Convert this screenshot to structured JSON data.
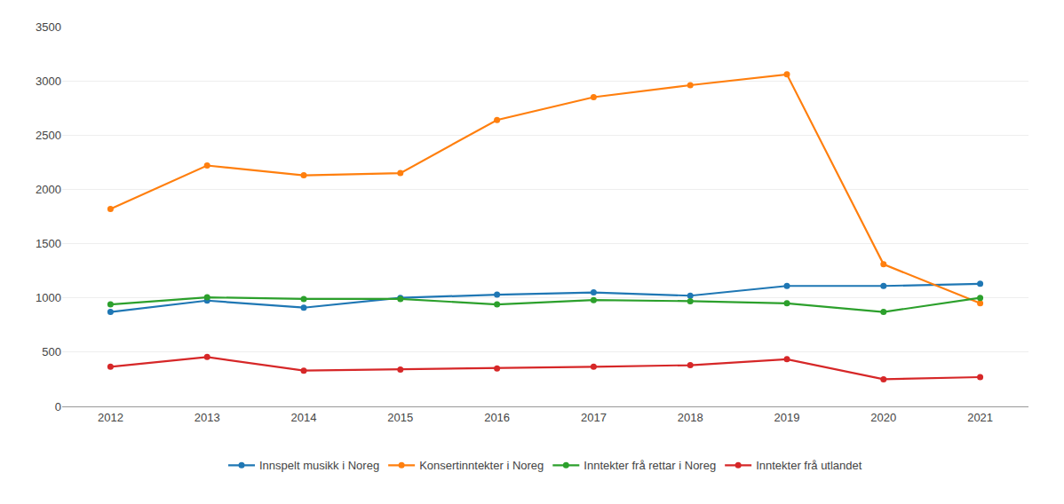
{
  "chart_data": {
    "type": "line",
    "x": [
      2012,
      2013,
      2014,
      2015,
      2016,
      2017,
      2018,
      2019,
      2020,
      2021
    ],
    "series": [
      {
        "name": "Innspelt musikk i Noreg",
        "values": [
          870,
          975,
          910,
          1000,
          1030,
          1050,
          1020,
          1110,
          1110,
          1130
        ]
      },
      {
        "name": "Konsertinntekter i Noreg",
        "values": [
          1820,
          2220,
          2130,
          2150,
          2640,
          2850,
          2960,
          3060,
          1310,
          950
        ]
      },
      {
        "name": "Inntekter frå rettar i Noreg",
        "values": [
          940,
          1005,
          990,
          990,
          940,
          980,
          970,
          950,
          870,
          1000
        ]
      },
      {
        "name": "Inntekter frå utlandet",
        "values": [
          365,
          455,
          330,
          340,
          350,
          365,
          380,
          435,
          250,
          270
        ]
      }
    ],
    "xlim": [
      2011.5,
      2021.5
    ],
    "xticks": [
      2012,
      2013,
      2014,
      2015,
      2016,
      2017,
      2018,
      2019,
      2020,
      2021
    ],
    "ylim": [
      0,
      3500
    ],
    "yticks": [
      0,
      500,
      1000,
      1500,
      2000,
      2500,
      3000,
      3500
    ],
    "grid": "y",
    "legend": "bottom",
    "marker": "circle"
  }
}
